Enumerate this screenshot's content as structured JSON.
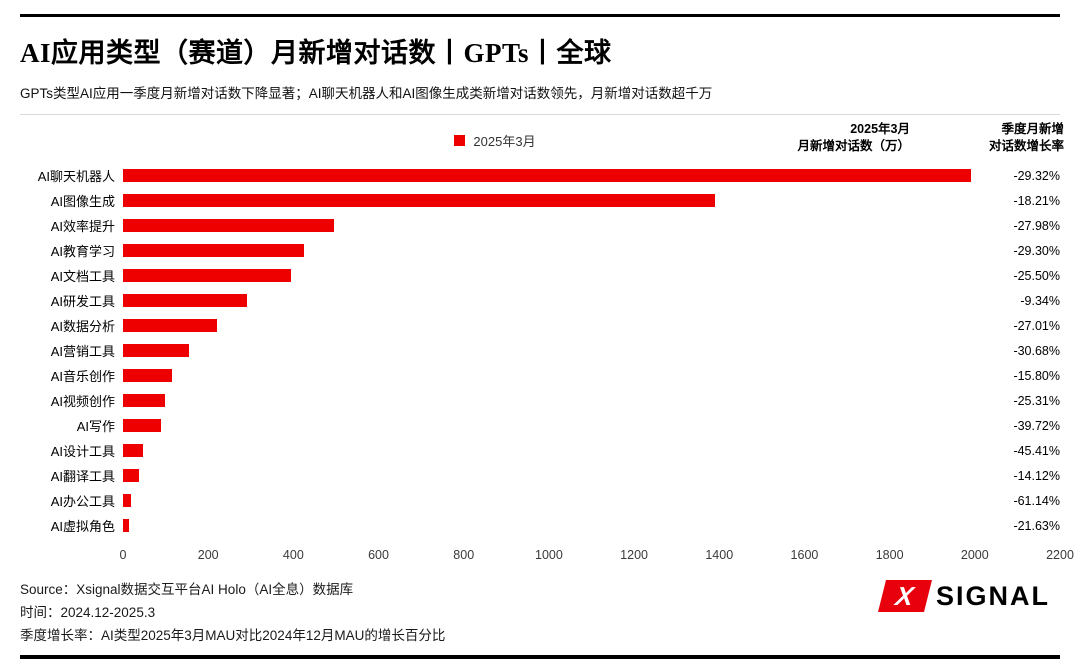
{
  "header": {
    "title": "AI应用类型（赛道）月新增对话数丨GPTs丨全球",
    "subtitle": "GPTs类型AI应用一季度月新增对话数下降显著；AI聊天机器人和AI图像生成类新增对话数领先，月新增对话数超千万"
  },
  "columns": {
    "value_header": "2025年3月\n月新增对话数（万）",
    "growth_header": "季度月新增\n对话数增长率"
  },
  "chart_data": {
    "type": "bar",
    "orientation": "horizontal",
    "title": "AI应用类型（赛道）月新增对话数丨GPTs丨全球",
    "legend": "2025年3月",
    "bar_color": "#ee0000",
    "xlim": [
      0,
      2200
    ],
    "xticks": [
      0,
      200,
      400,
      600,
      800,
      1000,
      1200,
      1400,
      1600,
      1800,
      2000,
      2200
    ],
    "categories": [
      "AI聊天机器人",
      "AI图像生成",
      "AI效率提升",
      "AI教育学习",
      "AI文档工具",
      "AI研发工具",
      "AI数据分析",
      "AI营销工具",
      "AI音乐创作",
      "AI视频创作",
      "AI写作",
      "AI设计工具",
      "AI翻译工具",
      "AI办公工具",
      "AI虚拟角色"
    ],
    "values": [
      1990,
      1390,
      495,
      425,
      395,
      290,
      220,
      155,
      115,
      98,
      90,
      48,
      38,
      18,
      15
    ],
    "growth": [
      "-29.32%",
      "-18.21%",
      "-27.98%",
      "-29.30%",
      "-25.50%",
      "-9.34%",
      "-27.01%",
      "-30.68%",
      "-15.80%",
      "-25.31%",
      "-39.72%",
      "-45.41%",
      "-14.12%",
      "-61.14%",
      "-21.63%"
    ],
    "grid": false,
    "legend_position": "top-center",
    "value_axis_label": "月新增对话数（万）"
  },
  "footer": {
    "source": "Source：Xsignal数据交互平台AI Holo（AI全息）数据库",
    "time": "时间：2024.12-2025.3",
    "note": "季度增长率：AI类型2025年3月MAU对比2024年12月MAU的增长百分比",
    "logo_x": "X",
    "logo_text": "SIGNAL",
    "logo_color": "#e8000d"
  }
}
